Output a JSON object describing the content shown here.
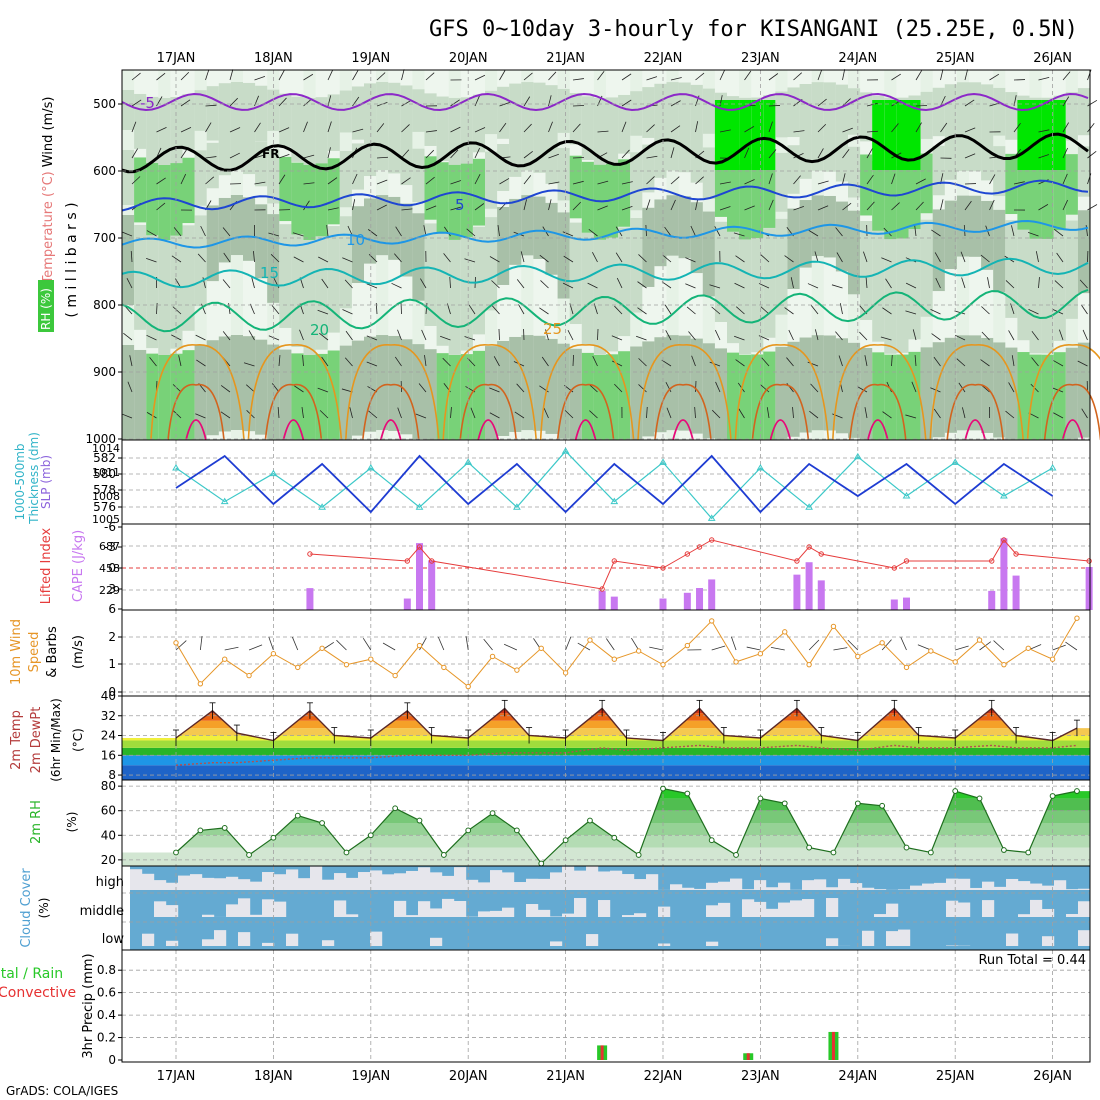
{
  "title": "GFS 0~10day 3-hourly for KISANGANI (25.25E, 0.5N)",
  "credit": "GrADS: COLA/IGES",
  "dates": [
    "17JAN",
    "18JAN",
    "19JAN",
    "20JAN",
    "21JAN",
    "22JAN",
    "23JAN",
    "24JAN",
    "25JAN",
    "26JAN"
  ],
  "colors": {
    "frame": "#000000",
    "grid": "#a0a0a0",
    "rh_light": "#e6f2e6",
    "rh_mid": "#c8dcc8",
    "rh_dark": "#a8c0a8",
    "rh_green": "#78d278",
    "rh_bright": "#00e600",
    "slp": "#1e3cd2",
    "thickness": "#3cc8c8",
    "cape": "#c878f0",
    "lifted_index": "#e63c3c",
    "wind10m": "#e69628",
    "rh2m": "#28b428",
    "cloud_bg": "#64aad2",
    "cloud_fill": "#e6e6ec",
    "precip_total": "#28c828",
    "precip_conv": "#e63232"
  },
  "panels": {
    "upper": {
      "label_wind": "Wind (m/s)",
      "label_temp": "Temperature (°C)",
      "label_rh": "RH (%)",
      "label_ylabel": "( m i l l i b a r s )",
      "yticks": [
        "500",
        "600",
        "700",
        "800",
        "900",
        "1000"
      ],
      "isotherm_labels": [
        {
          "text": "-5",
          "color": "#8c28c8"
        },
        {
          "text": "FR",
          "color": "#000000"
        },
        {
          "text": "5",
          "color": "#1e46d2"
        },
        {
          "text": "10",
          "color": "#1e96e6"
        },
        {
          "text": "15",
          "color": "#14b4b4"
        },
        {
          "text": "20",
          "color": "#14b478"
        },
        {
          "text": "25",
          "color": "#e6961e"
        }
      ]
    },
    "slp": {
      "label_a": "1000-500mb",
      "label_b": "Thickness (dm)",
      "label_c": "SLP (mb)",
      "left_ticks": [
        "582",
        "580",
        "578",
        "576"
      ],
      "right_ticks": [
        "1014",
        "1011",
        "1008",
        "1005"
      ]
    },
    "cape": {
      "label_a": "Lifted Index",
      "label_b": "CAPE (J/kg)",
      "left_ticks": [
        "-6",
        "-3",
        "0",
        "3",
        "6"
      ],
      "right_ticks": [
        "687",
        "458",
        "229"
      ]
    },
    "wind": {
      "label_a": "10m Wind",
      "label_b": "Speed",
      "label_c": "& Barbs",
      "label_unit": "(m/s)",
      "yticks": [
        "2",
        "1",
        "0"
      ]
    },
    "temp": {
      "label_a": "2m Temp",
      "label_b": "2m DewPt",
      "label_c": "(6hr Min/Max)",
      "label_unit": "(°C)",
      "yticks": [
        "40",
        "32",
        "24",
        "16",
        "8"
      ]
    },
    "rh": {
      "label_a": "2m RH",
      "label_unit": "(%)",
      "yticks": [
        "80",
        "60",
        "40",
        "20"
      ]
    },
    "cloud": {
      "label_a": "Cloud Cover",
      "label_unit": "(%)",
      "rows": [
        "high",
        "middle",
        "low"
      ]
    },
    "precip": {
      "label_a": "Total / Rain",
      "label_b": "Convective",
      "label_c": "3hr Precip (mm)",
      "yticks": [
        "0.8",
        "0.6",
        "0.4",
        "0.2",
        "0"
      ],
      "run_total": "Run Total = 0.44"
    }
  },
  "chart_data": [
    {
      "type": "line",
      "title": "1000-500mb Thickness (dm) / SLP (mb)",
      "x": [
        "17JAN 00",
        "17JAN 12",
        "18JAN 00",
        "18JAN 12",
        "19JAN 00",
        "19JAN 12",
        "20JAN 00",
        "20JAN 12",
        "21JAN 00",
        "21JAN 12",
        "22JAN 00",
        "22JAN 12",
        "23JAN 00",
        "23JAN 12",
        "24JAN 00",
        "24JAN 12",
        "25JAN 00",
        "25JAN 12",
        "26JAN 00"
      ],
      "series": [
        {
          "name": "SLP (mb)",
          "values": [
            1009,
            1013,
            1007,
            1012,
            1006,
            1013,
            1007,
            1012,
            1006,
            1012,
            1007,
            1013,
            1006,
            1012,
            1008,
            1012,
            1007,
            1012,
            1008
          ]
        },
        {
          "name": "Thickness (dm)",
          "values": [
            580.5,
            577.5,
            580,
            577,
            580.5,
            577,
            581,
            577,
            582,
            577.5,
            581,
            576,
            580.5,
            577,
            581.5,
            578,
            581,
            578,
            580.5
          ]
        }
      ],
      "ylim_left": [
        575.5,
        583
      ],
      "ylim_right": [
        1004.5,
        1015
      ]
    },
    {
      "type": "bar",
      "title": "Lifted Index / CAPE (J/kg)",
      "categories": [
        "18JAN 09",
        "19JAN 09",
        "19JAN 12",
        "19JAN 15",
        "21JAN 09",
        "21JAN 12",
        "22JAN 00",
        "22JAN 06",
        "22JAN 09",
        "22JAN 12",
        "23JAN 09",
        "23JAN 12",
        "23JAN 15",
        "24JAN 09",
        "24JAN 12",
        "25JAN 09",
        "25JAN 12",
        "25JAN 15",
        "26JAN 09"
      ],
      "series": [
        {
          "name": "CAPE (J/kg)",
          "values": [
            229,
            120,
            700,
            520,
            200,
            140,
            120,
            180,
            230,
            320,
            370,
            500,
            310,
            110,
            130,
            200,
            750,
            360,
            450
          ]
        },
        {
          "name": "Lifted Index",
          "values": [
            -2,
            -1,
            -3,
            -1,
            3,
            -1,
            0,
            -2,
            -3,
            -4,
            -1,
            -3,
            -2,
            0,
            -1,
            -1,
            -4,
            -2,
            -1
          ]
        }
      ],
      "ylim_cape": [
        0,
        900
      ],
      "ylim_li": [
        6,
        -6
      ]
    },
    {
      "type": "line",
      "title": "10m Wind Speed (m/s)",
      "x": [
        "17JAN 00",
        "17JAN 06",
        "17JAN 12",
        "17JAN 18",
        "18JAN 00",
        "18JAN 06",
        "18JAN 12",
        "18JAN 18",
        "19JAN 00",
        "19JAN 06",
        "19JAN 12",
        "19JAN 18",
        "20JAN 00",
        "20JAN 06",
        "20JAN 12",
        "20JAN 18",
        "21JAN 00",
        "21JAN 06",
        "21JAN 12",
        "21JAN 18",
        "22JAN 00",
        "22JAN 06",
        "22JAN 12",
        "22JAN 18",
        "23JAN 00",
        "23JAN 06",
        "23JAN 12",
        "23JAN 18",
        "24JAN 00",
        "24JAN 06",
        "24JAN 12",
        "24JAN 18",
        "25JAN 00",
        "25JAN 06",
        "25JAN 12",
        "25JAN 18",
        "26JAN 00",
        "26JAN 06"
      ],
      "values": [
        1.8,
        0.3,
        1.2,
        0.6,
        1.4,
        0.9,
        1.6,
        1.0,
        1.2,
        0.6,
        1.7,
        0.9,
        0.2,
        1.3,
        0.8,
        1.6,
        0.7,
        1.9,
        1.2,
        1.5,
        1.0,
        1.7,
        2.6,
        1.1,
        1.4,
        2.2,
        1.0,
        2.4,
        1.3,
        1.8,
        0.9,
        1.5,
        1.1,
        1.9,
        1.0,
        1.6,
        1.2,
        2.7
      ],
      "ylim": [
        0,
        3
      ]
    },
    {
      "type": "area",
      "title": "2m Temp / 2m DewPt (°C)",
      "x": [
        "17JAN 00",
        "17JAN 09",
        "17JAN 15",
        "18JAN 00",
        "18JAN 09",
        "18JAN 15",
        "19JAN 00",
        "19JAN 09",
        "19JAN 15",
        "20JAN 00",
        "20JAN 09",
        "20JAN 15",
        "21JAN 00",
        "21JAN 09",
        "21JAN 15",
        "22JAN 00",
        "22JAN 09",
        "22JAN 15",
        "23JAN 00",
        "23JAN 09",
        "23JAN 15",
        "24JAN 00",
        "24JAN 09",
        "24JAN 15",
        "25JAN 00",
        "25JAN 09",
        "25JAN 15",
        "26JAN 00",
        "26JAN 06"
      ],
      "series": [
        {
          "name": "2m Temp",
          "values": [
            23,
            34,
            25,
            22,
            34,
            24,
            23,
            34,
            24,
            23,
            35,
            24,
            23,
            35,
            23,
            22,
            35,
            24,
            23,
            35,
            24,
            22,
            35,
            24,
            23,
            35,
            24,
            22,
            27
          ]
        },
        {
          "name": "2m DewPt",
          "values": [
            12,
            13,
            13,
            14,
            15,
            15,
            15,
            16,
            16,
            16,
            17,
            17,
            17,
            19,
            18,
            19,
            20,
            19,
            19,
            20,
            19,
            18,
            20,
            19,
            19,
            20,
            19,
            19,
            20
          ]
        }
      ],
      "ylim": [
        6,
        40
      ]
    },
    {
      "type": "area",
      "title": "2m RH (%)",
      "x": [
        "17JAN 00",
        "17JAN 06",
        "17JAN 12",
        "17JAN 18",
        "18JAN 00",
        "18JAN 06",
        "18JAN 12",
        "18JAN 18",
        "19JAN 00",
        "19JAN 06",
        "19JAN 12",
        "19JAN 18",
        "20JAN 00",
        "20JAN 06",
        "20JAN 12",
        "20JAN 18",
        "21JAN 00",
        "21JAN 06",
        "21JAN 12",
        "21JAN 18",
        "22JAN 00",
        "22JAN 06",
        "22JAN 12",
        "22JAN 18",
        "23JAN 00",
        "23JAN 06",
        "23JAN 12",
        "23JAN 18",
        "24JAN 00",
        "24JAN 06",
        "24JAN 12",
        "24JAN 18",
        "25JAN 00",
        "25JAN 06",
        "25JAN 12",
        "25JAN 18",
        "26JAN 00",
        "26JAN 06"
      ],
      "values": [
        26,
        44,
        46,
        24,
        38,
        56,
        50,
        26,
        40,
        62,
        52,
        24,
        44,
        58,
        44,
        17,
        36,
        52,
        38,
        24,
        78,
        74,
        36,
        24,
        70,
        66,
        30,
        26,
        66,
        64,
        30,
        26,
        76,
        70,
        28,
        26,
        72,
        76
      ],
      "ylim": [
        15,
        85
      ]
    },
    {
      "type": "bar",
      "title": "3hr Precip (mm)",
      "categories": [
        "21JAN 09",
        "22JAN 21",
        "23JAN 18"
      ],
      "series": [
        {
          "name": "Total / Rain",
          "values": [
            0.13,
            0.06,
            0.25
          ]
        },
        {
          "name": "Convective",
          "values": [
            0.13,
            0.06,
            0.25
          ]
        }
      ],
      "ylim": [
        0,
        0.98
      ]
    }
  ]
}
